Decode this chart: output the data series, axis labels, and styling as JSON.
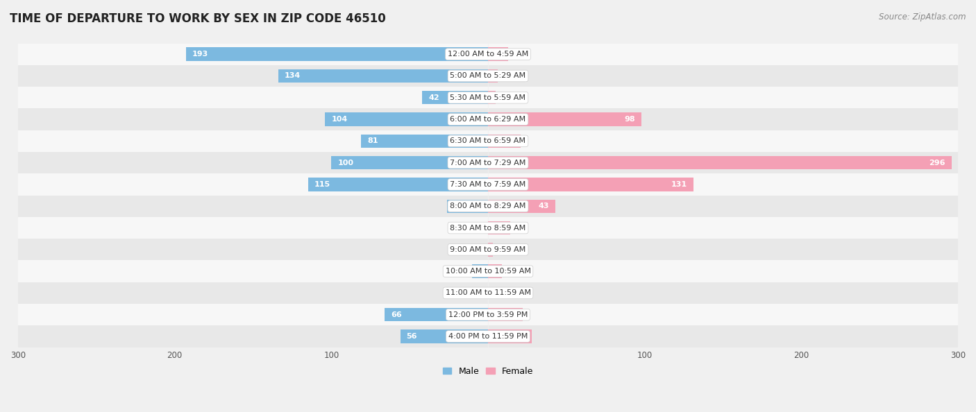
{
  "title": "TIME OF DEPARTURE TO WORK BY SEX IN ZIP CODE 46510",
  "source": "Source: ZipAtlas.com",
  "categories": [
    "12:00 AM to 4:59 AM",
    "5:00 AM to 5:29 AM",
    "5:30 AM to 5:59 AM",
    "6:00 AM to 6:29 AM",
    "6:30 AM to 6:59 AM",
    "7:00 AM to 7:29 AM",
    "7:30 AM to 7:59 AM",
    "8:00 AM to 8:29 AM",
    "8:30 AM to 8:59 AM",
    "9:00 AM to 9:59 AM",
    "10:00 AM to 10:59 AM",
    "11:00 AM to 11:59 AM",
    "12:00 PM to 3:59 PM",
    "4:00 PM to 11:59 PM"
  ],
  "male_values": [
    193,
    134,
    42,
    104,
    81,
    100,
    115,
    26,
    0,
    0,
    10,
    0,
    66,
    56
  ],
  "female_values": [
    13,
    6,
    5,
    98,
    21,
    296,
    131,
    43,
    14,
    3,
    9,
    0,
    22,
    28
  ],
  "male_color": "#7cb9e0",
  "female_color": "#f4a0b5",
  "axis_limit": 300,
  "bg_color": "#f0f0f0",
  "row_bg_light": "#f7f7f7",
  "row_bg_dark": "#e8e8e8",
  "title_fontsize": 12,
  "source_fontsize": 8.5,
  "label_fontsize": 8,
  "category_fontsize": 8,
  "tick_fontsize": 8.5,
  "legend_fontsize": 9,
  "bar_height": 0.62
}
